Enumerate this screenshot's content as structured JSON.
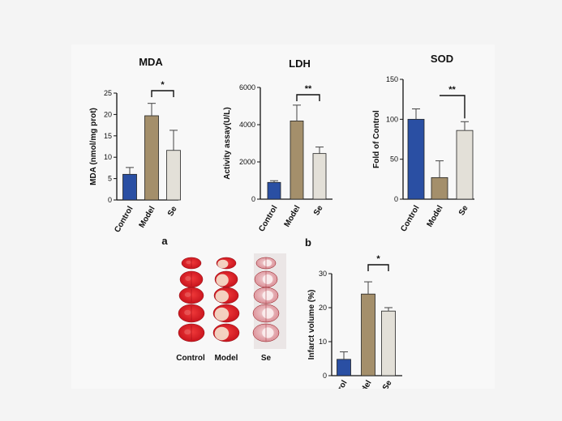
{
  "panel_labels": {
    "a": "a",
    "b": "b"
  },
  "brain_section": {
    "columns": [
      "Control",
      "Model",
      "Se"
    ],
    "rows": 5
  },
  "chart_data": [
    {
      "id": "mda",
      "type": "bar",
      "title": "MDA",
      "ylabel": "MDA (nmol/mg prot)",
      "categories": [
        "Control",
        "Model",
        "Se"
      ],
      "values": [
        6.0,
        19.7,
        11.6
      ],
      "errors": [
        1.6,
        2.9,
        4.7
      ],
      "colors": [
        "#2a4fa3",
        "#a48f6b",
        "#e3e0d8"
      ],
      "ylim": [
        0,
        25
      ],
      "yticks": [
        0,
        5,
        10,
        15,
        20,
        25
      ],
      "significance": {
        "from": 1,
        "to": 2,
        "label": "*"
      }
    },
    {
      "id": "ldh",
      "type": "bar",
      "title": "LDH",
      "ylabel": "Activity assay(U/L)",
      "categories": [
        "Control",
        "Model",
        "Se"
      ],
      "values": [
        900,
        4200,
        2450
      ],
      "errors": [
        90,
        850,
        350
      ],
      "colors": [
        "#2a4fa3",
        "#a48f6b",
        "#e3e0d8"
      ],
      "ylim": [
        0,
        6000
      ],
      "yticks": [
        0,
        2000,
        4000,
        6000
      ],
      "significance": {
        "from": 1,
        "to": 2,
        "label": "**"
      }
    },
    {
      "id": "sod",
      "type": "bar",
      "title": "SOD",
      "ylabel": "Fold of Control",
      "categories": [
        "Control",
        "Model",
        "Se"
      ],
      "values": [
        100,
        27,
        86
      ],
      "errors": [
        13,
        21,
        11
      ],
      "colors": [
        "#2a4fa3",
        "#a48f6b",
        "#e3e0d8"
      ],
      "ylim": [
        0,
        150
      ],
      "yticks": [
        0,
        50,
        100,
        150
      ],
      "significance": {
        "from": 1,
        "to": 2,
        "label": "**"
      }
    },
    {
      "id": "infarct",
      "type": "bar",
      "title": "",
      "ylabel": "Infarct volume (%)",
      "categories": [
        "Control",
        "Model",
        "Se"
      ],
      "values": [
        4.8,
        24.0,
        19.0
      ],
      "errors": [
        2.2,
        3.6,
        1.0
      ],
      "colors": [
        "#2a4fa3",
        "#a48f6b",
        "#e3e0d8"
      ],
      "ylim": [
        0,
        30
      ],
      "yticks": [
        0,
        10,
        20,
        30
      ],
      "significance": {
        "from": 1,
        "to": 2,
        "label": "*"
      }
    }
  ]
}
